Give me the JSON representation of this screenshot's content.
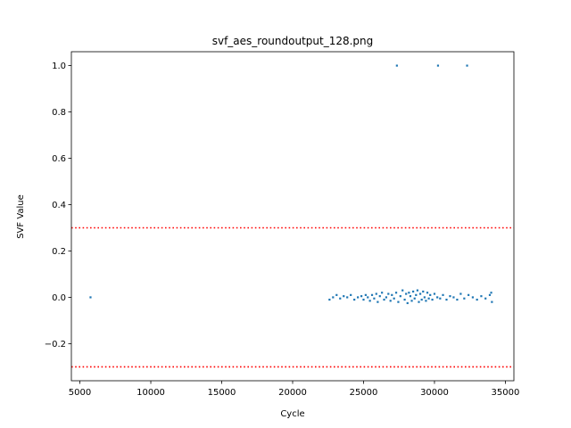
{
  "chart_data": {
    "type": "scatter",
    "title": "svf_aes_roundoutput_128.png",
    "xlabel": "Cycle",
    "ylabel": "SVF Value",
    "xlim": [
      4400,
      35600
    ],
    "ylim": [
      -0.36,
      1.06
    ],
    "xticks": [
      5000,
      10000,
      15000,
      20000,
      25000,
      30000,
      35000
    ],
    "yticks": [
      -0.2,
      0.0,
      0.2,
      0.4,
      0.6,
      0.8,
      1.0
    ],
    "xtick_labels": [
      "5000",
      "10000",
      "15000",
      "20000",
      "25000",
      "30000",
      "35000"
    ],
    "ytick_labels": [
      "−0.2",
      "0.0",
      "0.2",
      "0.4",
      "0.6",
      "0.8",
      "1.0"
    ],
    "grid": false,
    "reference_lines": [
      {
        "y": 0.3,
        "color": "#ff0000",
        "style": "dotted"
      },
      {
        "y": -0.3,
        "color": "#ff0000",
        "style": "dotted"
      }
    ],
    "series": [
      {
        "color": "#1f77b4",
        "points": [
          [
            5750,
            0.0
          ],
          [
            27350,
            1.0
          ],
          [
            30250,
            1.0
          ],
          [
            32300,
            1.0
          ],
          [
            22600,
            -0.01
          ],
          [
            22850,
            0.0
          ],
          [
            23100,
            0.01
          ],
          [
            23350,
            -0.005
          ],
          [
            23600,
            0.005
          ],
          [
            23850,
            0.0
          ],
          [
            24100,
            0.01
          ],
          [
            24350,
            -0.01
          ],
          [
            24600,
            0.0
          ],
          [
            24850,
            0.005
          ],
          [
            25000,
            -0.01
          ],
          [
            25150,
            0.01
          ],
          [
            25300,
            0.0
          ],
          [
            25450,
            -0.015
          ],
          [
            25600,
            0.01
          ],
          [
            25750,
            -0.005
          ],
          [
            25900,
            0.015
          ],
          [
            26000,
            -0.02
          ],
          [
            26150,
            0.005
          ],
          [
            26300,
            0.02
          ],
          [
            26450,
            -0.01
          ],
          [
            26600,
            0.0
          ],
          [
            26750,
            0.015
          ],
          [
            26900,
            -0.015
          ],
          [
            27000,
            0.01
          ],
          [
            27150,
            -0.005
          ],
          [
            27300,
            0.02
          ],
          [
            27450,
            -0.02
          ],
          [
            27600,
            0.005
          ],
          [
            27750,
            0.03
          ],
          [
            27900,
            -0.01
          ],
          [
            28000,
            0.015
          ],
          [
            28100,
            -0.025
          ],
          [
            28200,
            0.02
          ],
          [
            28300,
            0.005
          ],
          [
            28400,
            -0.015
          ],
          [
            28500,
            0.025
          ],
          [
            28600,
            -0.005
          ],
          [
            28700,
            0.01
          ],
          [
            28800,
            0.03
          ],
          [
            28900,
            -0.02
          ],
          [
            29000,
            0.015
          ],
          [
            29100,
            -0.01
          ],
          [
            29200,
            0.025
          ],
          [
            29300,
            0.0
          ],
          [
            29400,
            -0.015
          ],
          [
            29500,
            0.02
          ],
          [
            29600,
            -0.005
          ],
          [
            29700,
            0.01
          ],
          [
            29850,
            -0.01
          ],
          [
            30000,
            0.015
          ],
          [
            30200,
            0.0
          ],
          [
            30400,
            -0.005
          ],
          [
            30600,
            0.01
          ],
          [
            30850,
            -0.01
          ],
          [
            31100,
            0.005
          ],
          [
            31350,
            0.0
          ],
          [
            31600,
            -0.01
          ],
          [
            31850,
            0.015
          ],
          [
            32100,
            -0.005
          ],
          [
            32400,
            0.01
          ],
          [
            32700,
            0.0
          ],
          [
            33000,
            -0.01
          ],
          [
            33300,
            0.005
          ],
          [
            33600,
            -0.005
          ],
          [
            33900,
            0.01
          ],
          [
            34050,
            -0.02
          ],
          [
            34000,
            0.02
          ]
        ]
      }
    ]
  }
}
